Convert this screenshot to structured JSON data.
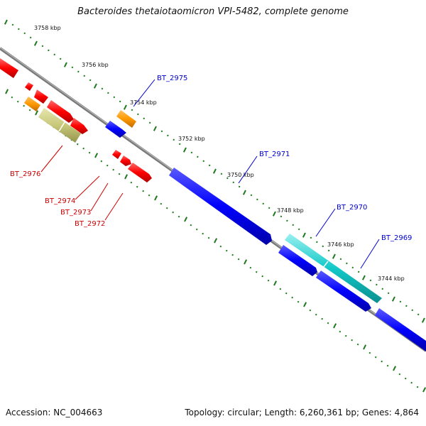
{
  "header": {
    "title": "Bacteroides thetaiotaomicron VPI-5482, complete genome"
  },
  "footer": {
    "accession": "Accession: NC_004663",
    "summary": "Topology: circular; Length: 6,260,361 bp; Genes: 4,864"
  },
  "colors": {
    "backbone": "#7a7a7a",
    "tick": "#1f7a1f",
    "gene_red": "#ff0000",
    "gene_blue": "#0000ff",
    "gene_orange": "#ff9900",
    "gene_olive": "#c8c87a",
    "gene_cyan": "#12c8c8",
    "gene_pink": "#ff99cc",
    "label_red": "#cc0000",
    "label_blue": "#0000cc"
  },
  "scale_labels": [
    "3758 kbp",
    "3756 kbp",
    "3754 kbp",
    "3752 kbp",
    "3750 kbp",
    "3748 kbp",
    "3746 kbp",
    "3744 kbp"
  ],
  "gene_labels": {
    "top": [
      "BT_2975",
      "BT_2971",
      "BT_2970",
      "BT_2969"
    ],
    "bottom": [
      "BT_2976",
      "BT_2974",
      "BT_2973",
      "BT_2972"
    ]
  }
}
